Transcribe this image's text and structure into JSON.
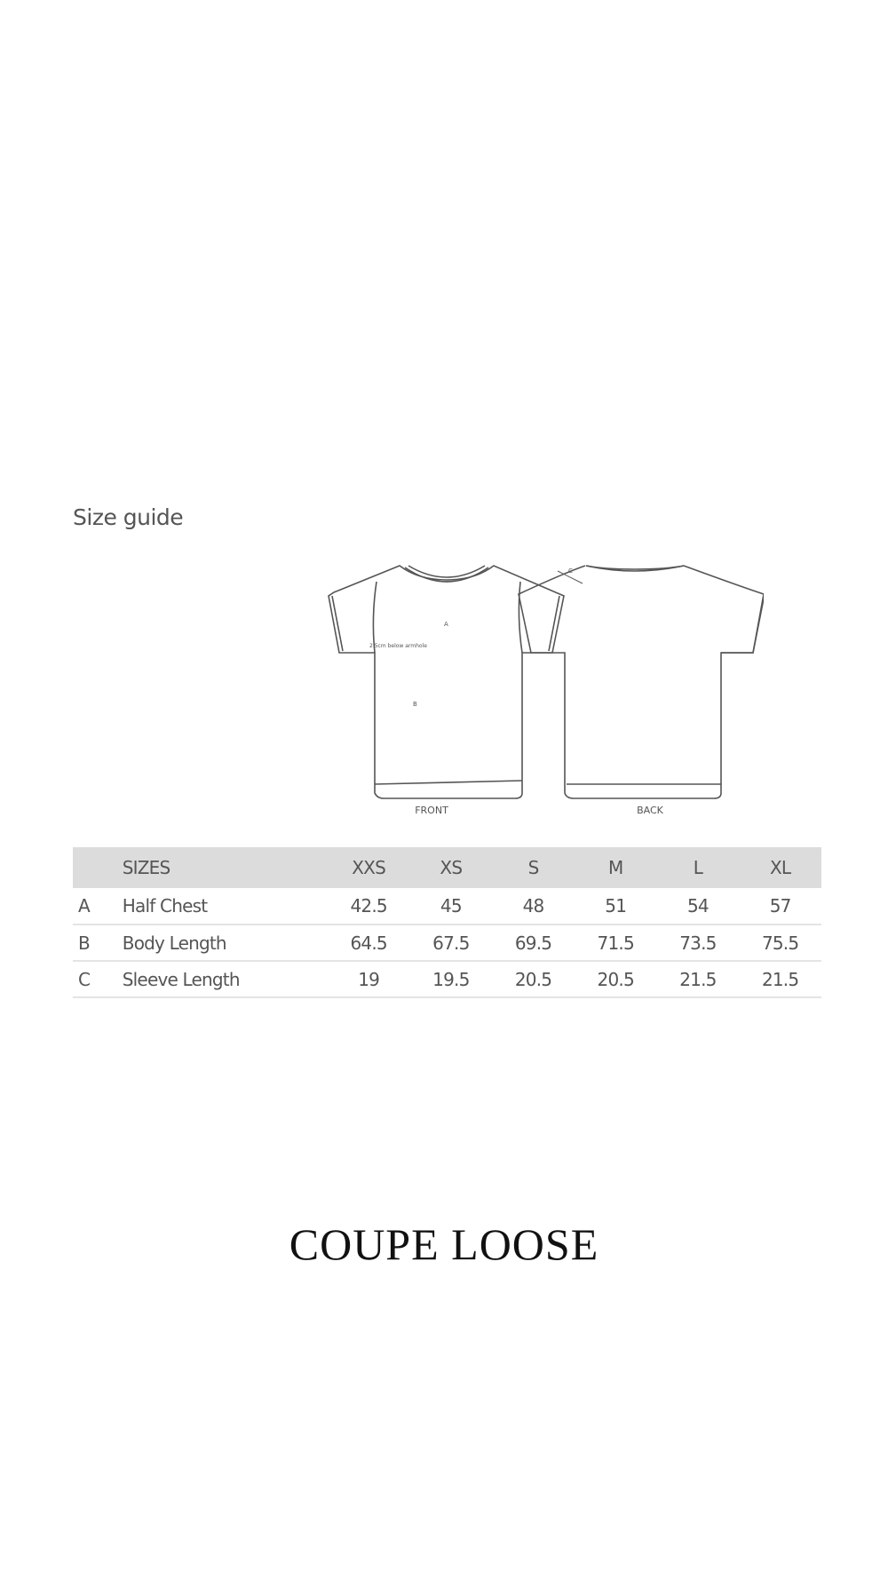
{
  "title": "Size guide",
  "diagram": {
    "front_label": "FRONT",
    "back_label": "BACK",
    "annotations": {
      "a": "A",
      "b": "B",
      "c": "C",
      "armhole_note": "2.5cm below armhole"
    }
  },
  "table": {
    "header": {
      "label": "SIZES",
      "sizes": [
        "XXS",
        "XS",
        "S",
        "M",
        "L",
        "XL"
      ]
    },
    "rows": [
      {
        "letter": "A",
        "label": "Half Chest",
        "values": [
          "42.5",
          "45",
          "48",
          "51",
          "54",
          "57"
        ]
      },
      {
        "letter": "B",
        "label": "Body Length",
        "values": [
          "64.5",
          "67.5",
          "69.5",
          "71.5",
          "73.5",
          "75.5"
        ]
      },
      {
        "letter": "C",
        "label": "Sleeve Length",
        "values": [
          "19",
          "19.5",
          "20.5",
          "20.5",
          "21.5",
          "21.5"
        ]
      }
    ]
  },
  "fit_label": "COUPE LOOSE"
}
